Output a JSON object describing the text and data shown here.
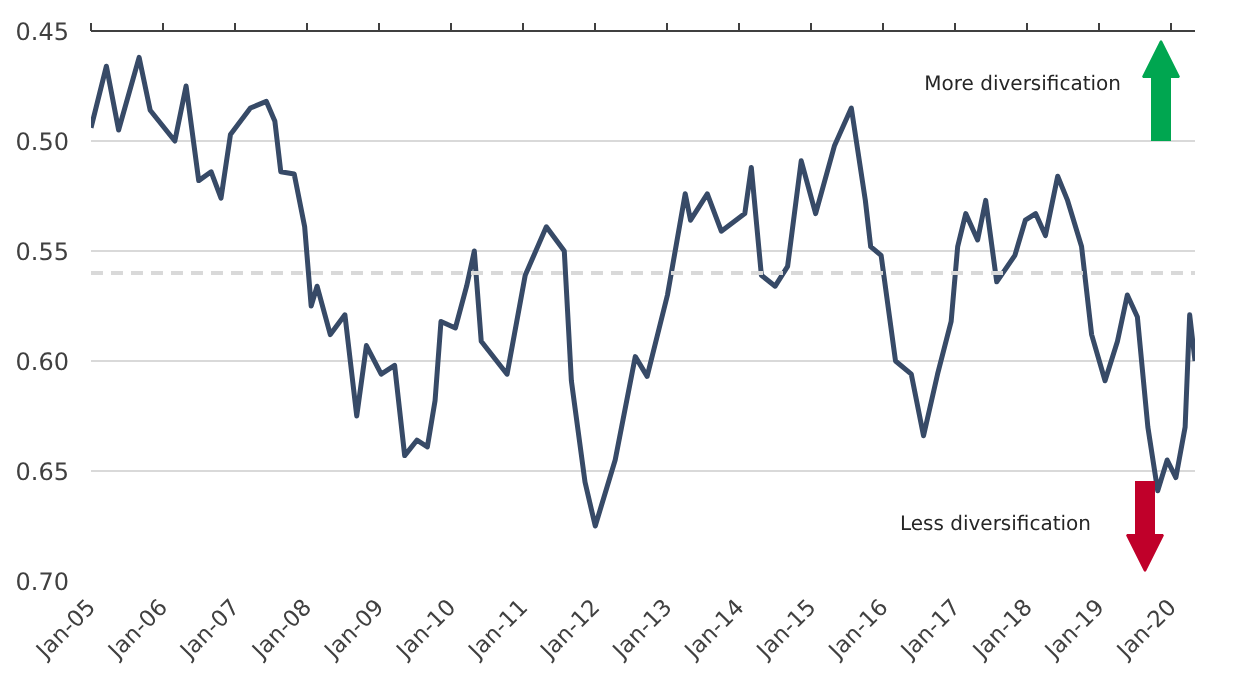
{
  "chart_data": {
    "type": "line",
    "x": [
      "2005-01-01",
      "2005-03-20",
      "2005-05-21",
      "2005-09-02",
      "2005-10-28",
      "2006-03-02",
      "2006-04-28",
      "2006-07-01",
      "2006-09-02",
      "2006-10-22",
      "2006-12-09",
      "2007-03-20",
      "2007-06-09",
      "2007-07-22",
      "2007-08-21",
      "2007-10-28",
      "2007-12-20",
      "2008-01-22",
      "2008-02-21",
      "2008-04-28",
      "2008-07-11",
      "2008-09-09",
      "2008-10-28",
      "2009-01-11",
      "2009-03-20",
      "2009-05-10",
      "2009-07-11",
      "2009-09-02",
      "2009-10-11",
      "2009-11-10",
      "2010-01-22",
      "2010-03-20",
      "2010-04-28",
      "2010-06-02",
      "2010-10-11",
      "2011-01-11",
      "2011-04-28",
      "2011-07-28",
      "2011-09-02",
      "2011-11-10",
      "2012-01-01",
      "2012-04-11",
      "2012-07-22",
      "2012-09-20",
      "2013-01-01",
      "2013-04-01",
      "2013-04-28",
      "2013-07-22",
      "2013-10-01",
      "2014-01-28",
      "2014-03-02",
      "2014-04-22",
      "2014-07-01",
      "2014-09-02",
      "2014-11-10",
      "2015-01-22",
      "2015-04-28",
      "2015-07-22",
      "2015-10-01",
      "2015-10-28",
      "2015-12-20",
      "2016-03-02",
      "2016-05-21",
      "2016-07-22",
      "2016-10-01",
      "2016-12-09",
      "2017-01-11",
      "2017-02-21",
      "2017-04-22",
      "2017-06-02",
      "2017-07-28",
      "2017-10-28",
      "2017-12-20",
      "2018-02-10",
      "2018-04-01",
      "2018-06-02",
      "2018-07-22",
      "2018-10-01",
      "2018-11-21",
      "2019-01-28",
      "2019-04-01",
      "2019-05-21",
      "2019-07-11",
      "2019-09-02",
      "2019-10-22",
      "2019-12-09",
      "2020-01-22",
      "2020-03-09",
      "2020-04-01",
      "2020-04-28"
    ],
    "series": [
      {
        "color": "#374a67",
        "values": [
          0.494,
          0.466,
          0.495,
          0.462,
          0.486,
          0.5,
          0.475,
          0.518,
          0.514,
          0.526,
          0.497,
          0.485,
          0.482,
          0.491,
          0.514,
          0.515,
          0.539,
          0.575,
          0.566,
          0.588,
          0.579,
          0.625,
          0.593,
          0.606,
          0.602,
          0.643,
          0.636,
          0.639,
          0.618,
          0.582,
          0.585,
          0.566,
          0.55,
          0.591,
          0.606,
          0.561,
          0.539,
          0.55,
          0.609,
          0.655,
          0.675,
          0.645,
          0.598,
          0.607,
          0.57,
          0.524,
          0.536,
          0.524,
          0.541,
          0.533,
          0.512,
          0.561,
          0.566,
          0.557,
          0.509,
          0.533,
          0.502,
          0.485,
          0.527,
          0.548,
          0.552,
          0.6,
          0.606,
          0.634,
          0.606,
          0.582,
          0.548,
          0.533,
          0.545,
          0.527,
          0.564,
          0.552,
          0.536,
          0.533,
          0.543,
          0.516,
          0.527,
          0.548,
          0.588,
          0.609,
          0.591,
          0.57,
          0.58,
          0.63,
          0.659,
          0.645,
          0.653,
          0.63,
          0.579,
          0.6
        ]
      }
    ],
    "xlim": [
      "2005-01-01",
      "2020-04-28"
    ],
    "xticks": [
      {
        "value": "2005-01",
        "label": "Jan-05"
      },
      {
        "value": "2006-01",
        "label": "Jan-06"
      },
      {
        "value": "2007-01",
        "label": "Jan-07"
      },
      {
        "value": "2008-01",
        "label": "Jan-08"
      },
      {
        "value": "2009-01",
        "label": "Jan-09"
      },
      {
        "value": "2010-01",
        "label": "Jan-10"
      },
      {
        "value": "2011-01",
        "label": "Jan-11"
      },
      {
        "value": "2012-01",
        "label": "Jan-12"
      },
      {
        "value": "2013-01",
        "label": "Jan-13"
      },
      {
        "value": "2014-01",
        "label": "Jan-14"
      },
      {
        "value": "2015-01",
        "label": "Jan-15"
      },
      {
        "value": "2016-01",
        "label": "Jan-16"
      },
      {
        "value": "2017-01",
        "label": "Jan-17"
      },
      {
        "value": "2018-01",
        "label": "Jan-18"
      },
      {
        "value": "2019-01",
        "label": "Jan-19"
      },
      {
        "value": "2020-01",
        "label": "Jan-20"
      }
    ],
    "ylim": [
      0.7,
      0.45
    ],
    "yticks": [
      0.45,
      {
        "value": 0.5,
        "label": "0.50"
      },
      0.55,
      {
        "value": 0.6,
        "label": "0.60"
      },
      0.65,
      {
        "value": 0.7,
        "label": "0.70"
      }
    ],
    "ref_lines": [
      {
        "axis": "y",
        "value": 0.56,
        "color": "#d9d9d9",
        "line_style": "dashed"
      }
    ],
    "annotations": [
      "More diversification",
      "Less diversification"
    ],
    "grid": "y",
    "marker": "none",
    "line_style": "solid"
  }
}
